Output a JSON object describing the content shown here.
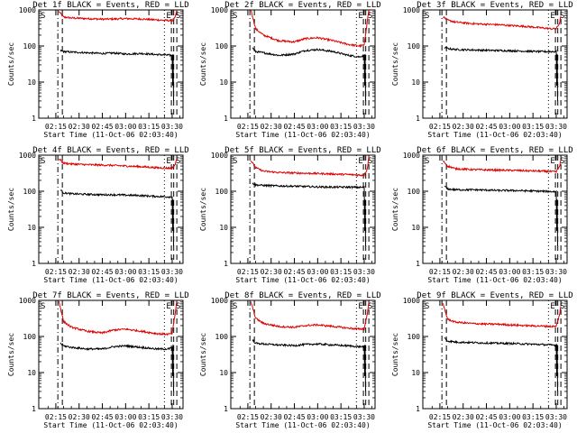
{
  "chart_data": [
    {
      "type": "line",
      "title": "Det 1f BLACK = Events, RED = LLD",
      "xlabel": "Start Time (11-Oct-06 02:03:40)",
      "ylabel": "Counts/sec",
      "yscale": "log",
      "ylim": [
        1,
        1000
      ],
      "x_ticks": [
        "02:15",
        "02:30",
        "02:45",
        "03:00",
        "03:15",
        "03:30"
      ],
      "markers": {
        "start_label": "S",
        "end_label": "E",
        "stop_label": "S"
      },
      "series": [
        {
          "color": "#e00000",
          "x": [
            "02:17",
            "02:20",
            "02:25",
            "02:35",
            "02:45",
            "02:52",
            "03:00",
            "03:10",
            "03:20",
            "03:27",
            "03:30",
            "03:32",
            "03:33"
          ],
          "y": [
            900,
            630,
            600,
            575,
            555,
            560,
            575,
            560,
            530,
            510,
            500,
            620,
            1000
          ]
        },
        {
          "color": "#000000",
          "x": [
            "02:18",
            "02:20",
            "02:25",
            "02:35",
            "02:45",
            "02:52",
            "03:00",
            "03:10",
            "03:20",
            "03:27",
            "03:30"
          ],
          "y": [
            75,
            70,
            68,
            65,
            62,
            64,
            60,
            62,
            58,
            56,
            55
          ]
        }
      ]
    },
    {
      "type": "line",
      "title": "Det 2f BLACK = Events, RED = LLD",
      "xlabel": "Start Time (11-Oct-06 02:03:40)",
      "ylabel": "Counts/sec",
      "yscale": "log",
      "ylim": [
        1,
        1000
      ],
      "x_ticks": [
        "02:15",
        "02:30",
        "02:45",
        "03:00",
        "03:15",
        "03:30"
      ],
      "markers": {
        "start_label": "S",
        "end_label": "E",
        "stop_label": "S"
      },
      "series": [
        {
          "color": "#e00000",
          "x": [
            "02:17",
            "02:20",
            "02:25",
            "02:35",
            "02:45",
            "02:52",
            "03:00",
            "03:10",
            "03:20",
            "03:27",
            "03:30",
            "03:32",
            "03:33"
          ],
          "y": [
            1000,
            300,
            200,
            140,
            130,
            160,
            170,
            140,
            110,
            100,
            105,
            500,
            1000
          ]
        },
        {
          "color": "#000000",
          "x": [
            "02:18",
            "02:20",
            "02:25",
            "02:35",
            "02:45",
            "02:52",
            "03:00",
            "03:10",
            "03:20",
            "03:27",
            "03:30"
          ],
          "y": [
            90,
            70,
            65,
            55,
            60,
            75,
            80,
            70,
            55,
            50,
            55
          ]
        }
      ]
    },
    {
      "type": "line",
      "title": "Det 3f BLACK = Events, RED = LLD",
      "xlabel": "Start Time (11-Oct-06 02:03:40)",
      "ylabel": "Counts/sec",
      "yscale": "log",
      "ylim": [
        1,
        1000
      ],
      "x_ticks": [
        "02:15",
        "02:30",
        "02:45",
        "03:00",
        "03:15",
        "03:30"
      ],
      "markers": {
        "start_label": "S",
        "end_label": "E",
        "stop_label": "S"
      },
      "series": [
        {
          "color": "#e00000",
          "x": [
            "02:17",
            "02:20",
            "02:25",
            "02:35",
            "02:45",
            "02:52",
            "03:00",
            "03:10",
            "03:20",
            "03:27",
            "03:30",
            "03:32",
            "03:33"
          ],
          "y": [
            650,
            520,
            460,
            420,
            400,
            390,
            370,
            350,
            320,
            300,
            300,
            420,
            650
          ]
        },
        {
          "color": "#000000",
          "x": [
            "02:18",
            "02:20",
            "02:25",
            "02:35",
            "02:45",
            "02:52",
            "03:00",
            "03:10",
            "03:20",
            "03:27",
            "03:30"
          ],
          "y": [
            90,
            85,
            80,
            78,
            76,
            75,
            74,
            72,
            70,
            70,
            70
          ]
        }
      ]
    },
    {
      "type": "line",
      "title": "Det 4f BLACK = Events, RED = LLD",
      "xlabel": "Start Time (11-Oct-06 02:03:40)",
      "ylabel": "Counts/sec",
      "yscale": "log",
      "ylim": [
        1,
        1000
      ],
      "x_ticks": [
        "02:15",
        "02:30",
        "02:45",
        "03:00",
        "03:15",
        "03:30"
      ],
      "markers": {
        "start_label": "S",
        "end_label": "E",
        "stop_label": "S"
      },
      "series": [
        {
          "color": "#e00000",
          "x": [
            "02:17",
            "02:20",
            "02:25",
            "02:35",
            "02:45",
            "02:52",
            "03:00",
            "03:10",
            "03:20",
            "03:27",
            "03:30",
            "03:32",
            "03:33"
          ],
          "y": [
            800,
            600,
            570,
            545,
            530,
            520,
            500,
            480,
            450,
            440,
            430,
            560,
            800
          ]
        },
        {
          "color": "#000000",
          "x": [
            "02:18",
            "02:20",
            "02:25",
            "02:35",
            "02:45",
            "02:52",
            "03:00",
            "03:10",
            "03:20",
            "03:27",
            "03:30"
          ],
          "y": [
            110,
            90,
            85,
            82,
            80,
            80,
            78,
            76,
            72,
            70,
            70
          ]
        }
      ]
    },
    {
      "type": "line",
      "title": "Det 5f BLACK = Events, RED = LLD",
      "xlabel": "Start Time (11-Oct-06 02:03:40)",
      "ylabel": "Counts/sec",
      "yscale": "log",
      "ylim": [
        1,
        1000
      ],
      "x_ticks": [
        "02:15",
        "02:30",
        "02:45",
        "03:00",
        "03:15",
        "03:30"
      ],
      "markers": {
        "start_label": "S",
        "end_label": "E",
        "stop_label": "S"
      },
      "series": [
        {
          "color": "#e00000",
          "x": [
            "02:17",
            "02:20",
            "02:25",
            "02:35",
            "02:45",
            "02:52",
            "03:00",
            "03:10",
            "03:20",
            "03:27",
            "03:30",
            "03:32",
            "03:33"
          ],
          "y": [
            700,
            450,
            360,
            330,
            320,
            315,
            310,
            300,
            290,
            280,
            280,
            420,
            900
          ]
        },
        {
          "color": "#000000",
          "x": [
            "02:18",
            "02:20",
            "02:25",
            "02:35",
            "02:45",
            "02:52",
            "03:00",
            "03:10",
            "03:20",
            "03:27",
            "03:30"
          ],
          "y": [
            170,
            150,
            145,
            140,
            138,
            135,
            132,
            130,
            130,
            128,
            128
          ]
        }
      ]
    },
    {
      "type": "line",
      "title": "Det 6f BLACK = Events, RED = LLD",
      "xlabel": "Start Time (11-Oct-06 02:03:40)",
      "ylabel": "Counts/sec",
      "yscale": "log",
      "ylim": [
        1,
        1000
      ],
      "x_ticks": [
        "02:15",
        "02:30",
        "02:45",
        "03:00",
        "03:15",
        "03:30"
      ],
      "markers": {
        "start_label": "S",
        "end_label": "E",
        "stop_label": "S"
      },
      "series": [
        {
          "color": "#e00000",
          "x": [
            "02:17",
            "02:20",
            "02:25",
            "02:35",
            "02:45",
            "02:52",
            "03:00",
            "03:10",
            "03:20",
            "03:27",
            "03:30",
            "03:32",
            "03:33"
          ],
          "y": [
            700,
            500,
            420,
            400,
            390,
            385,
            380,
            370,
            360,
            350,
            345,
            480,
            700
          ]
        },
        {
          "color": "#000000",
          "x": [
            "02:18",
            "02:20",
            "02:25",
            "02:35",
            "02:45",
            "02:52",
            "03:00",
            "03:10",
            "03:20",
            "03:27",
            "03:30"
          ],
          "y": [
            140,
            115,
            110,
            110,
            108,
            105,
            105,
            103,
            100,
            98,
            98
          ]
        }
      ]
    },
    {
      "type": "line",
      "title": "Det 7f BLACK = Events, RED = LLD",
      "xlabel": "Start Time (11-Oct-06 02:03:40)",
      "ylabel": "Counts/sec",
      "yscale": "log",
      "ylim": [
        1,
        1000
      ],
      "x_ticks": [
        "02:15",
        "02:30",
        "02:45",
        "03:00",
        "03:15",
        "03:30"
      ],
      "markers": {
        "start_label": "S",
        "end_label": "E",
        "stop_label": "S"
      },
      "series": [
        {
          "color": "#e00000",
          "x": [
            "02:17",
            "02:20",
            "02:25",
            "02:35",
            "02:45",
            "02:52",
            "03:00",
            "03:10",
            "03:20",
            "03:27",
            "03:30",
            "03:32",
            "03:33"
          ],
          "y": [
            950,
            260,
            180,
            140,
            125,
            150,
            160,
            140,
            120,
            115,
            120,
            450,
            1000
          ]
        },
        {
          "color": "#000000",
          "x": [
            "02:18",
            "02:20",
            "02:25",
            "02:35",
            "02:45",
            "02:52",
            "03:00",
            "03:10",
            "03:20",
            "03:27",
            "03:30"
          ],
          "y": [
            65,
            55,
            50,
            45,
            45,
            52,
            55,
            50,
            45,
            45,
            48
          ]
        }
      ]
    },
    {
      "type": "line",
      "title": "Det 8f BLACK = Events, RED = LLD",
      "xlabel": "Start Time (11-Oct-06 02:03:40)",
      "ylabel": "Counts/sec",
      "yscale": "log",
      "ylim": [
        1,
        1000
      ],
      "x_ticks": [
        "02:15",
        "02:30",
        "02:45",
        "03:00",
        "03:15",
        "03:30"
      ],
      "markers": {
        "start_label": "S",
        "end_label": "E",
        "stop_label": "S"
      },
      "series": [
        {
          "color": "#e00000",
          "x": [
            "02:17",
            "02:20",
            "02:25",
            "02:35",
            "02:45",
            "02:52",
            "03:00",
            "03:10",
            "03:20",
            "03:27",
            "03:30",
            "03:32",
            "03:33"
          ],
          "y": [
            900,
            320,
            230,
            190,
            180,
            200,
            210,
            190,
            170,
            160,
            165,
            420,
            900
          ]
        },
        {
          "color": "#000000",
          "x": [
            "02:18",
            "02:20",
            "02:25",
            "02:35",
            "02:45",
            "02:52",
            "03:00",
            "03:10",
            "03:20",
            "03:27",
            "03:30"
          ],
          "y": [
            80,
            65,
            62,
            58,
            56,
            60,
            62,
            58,
            55,
            52,
            52
          ]
        }
      ]
    },
    {
      "type": "line",
      "title": "Det 9f BLACK = Events, RED = LLD",
      "xlabel": "Start Time (11-Oct-06 02:03:40)",
      "ylabel": "Counts/sec",
      "yscale": "log",
      "ylim": [
        1,
        1000
      ],
      "x_ticks": [
        "02:15",
        "02:30",
        "02:45",
        "03:00",
        "03:15",
        "03:30"
      ],
      "markers": {
        "start_label": "S",
        "end_label": "E",
        "stop_label": "S"
      },
      "series": [
        {
          "color": "#e00000",
          "x": [
            "02:17",
            "02:20",
            "02:25",
            "02:35",
            "02:45",
            "02:52",
            "03:00",
            "03:10",
            "03:20",
            "03:27",
            "03:30",
            "03:32",
            "03:33"
          ],
          "y": [
            800,
            300,
            250,
            230,
            220,
            220,
            210,
            200,
            195,
            190,
            190,
            380,
            700
          ]
        },
        {
          "color": "#000000",
          "x": [
            "02:18",
            "02:20",
            "02:25",
            "02:35",
            "02:45",
            "02:52",
            "03:00",
            "03:10",
            "03:20",
            "03:27",
            "03:30"
          ],
          "y": [
            90,
            75,
            70,
            68,
            66,
            65,
            64,
            62,
            60,
            58,
            58
          ]
        }
      ]
    }
  ]
}
